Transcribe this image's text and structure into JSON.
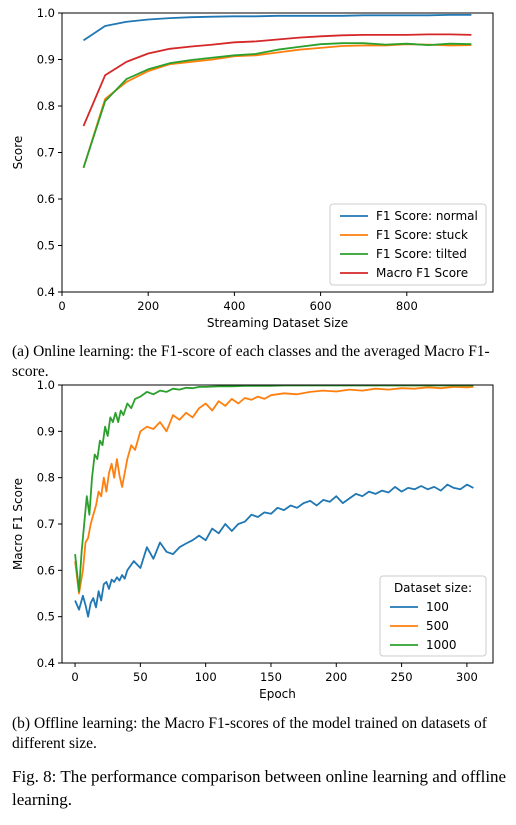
{
  "chart_data": [
    {
      "type": "line",
      "xlabel": "Streaming Dataset Size",
      "ylabel": "Score",
      "xlim": [
        0,
        1000
      ],
      "ylim": [
        0.4,
        1.0
      ],
      "xticks": [
        0,
        200,
        400,
        600,
        800
      ],
      "xtick_labels": [
        "0",
        "200",
        "400",
        "600",
        "800"
      ],
      "yticks": [
        0.4,
        0.5,
        0.6,
        0.7,
        0.8,
        0.9,
        1.0
      ],
      "ytick_labels": [
        "0.4",
        "0.5",
        "0.6",
        "0.7",
        "0.8",
        "0.9",
        "1.0"
      ],
      "grid": false,
      "legend_position": "lower-right",
      "series": [
        {
          "name": "F1 Score: normal",
          "color": "#1f77b4",
          "x": [
            50,
            100,
            150,
            200,
            250,
            300,
            350,
            400,
            450,
            500,
            550,
            600,
            650,
            700,
            750,
            800,
            850,
            900,
            950
          ],
          "y": [
            0.941,
            0.972,
            0.981,
            0.986,
            0.989,
            0.991,
            0.992,
            0.993,
            0.993,
            0.994,
            0.994,
            0.994,
            0.994,
            0.995,
            0.995,
            0.995,
            0.995,
            0.996,
            0.996
          ]
        },
        {
          "name": "F1 Score: stuck",
          "color": "#ff7f0e",
          "x": [
            50,
            100,
            150,
            200,
            250,
            300,
            350,
            400,
            450,
            500,
            550,
            600,
            650,
            700,
            750,
            800,
            850,
            900,
            950
          ],
          "y": [
            0.667,
            0.815,
            0.852,
            0.875,
            0.89,
            0.895,
            0.9,
            0.907,
            0.909,
            0.915,
            0.921,
            0.925,
            0.929,
            0.93,
            0.93,
            0.933,
            0.932,
            0.93,
            0.931
          ]
        },
        {
          "name": "F1 Score: tilted",
          "color": "#2ca02c",
          "x": [
            50,
            100,
            150,
            200,
            250,
            300,
            350,
            400,
            450,
            500,
            550,
            600,
            650,
            700,
            750,
            800,
            850,
            900,
            950
          ],
          "y": [
            0.667,
            0.81,
            0.858,
            0.879,
            0.892,
            0.899,
            0.904,
            0.909,
            0.912,
            0.921,
            0.927,
            0.933,
            0.935,
            0.935,
            0.932,
            0.934,
            0.931,
            0.934,
            0.933
          ]
        },
        {
          "name": "Macro F1 Score",
          "color": "#d62728",
          "x": [
            50,
            100,
            150,
            200,
            250,
            300,
            350,
            400,
            450,
            500,
            550,
            600,
            650,
            700,
            750,
            800,
            850,
            900,
            950
          ],
          "y": [
            0.757,
            0.866,
            0.895,
            0.913,
            0.923,
            0.928,
            0.932,
            0.937,
            0.939,
            0.943,
            0.947,
            0.95,
            0.952,
            0.953,
            0.953,
            0.953,
            0.954,
            0.954,
            0.953
          ]
        }
      ]
    },
    {
      "type": "line",
      "xlabel": "Epoch",
      "ylabel": "Macro F1 Score",
      "xlim": [
        -10,
        320
      ],
      "ylim": [
        0.4,
        1.0
      ],
      "xticks": [
        0,
        50,
        100,
        150,
        200,
        250,
        300
      ],
      "xtick_labels": [
        "0",
        "50",
        "100",
        "150",
        "200",
        "250",
        "300"
      ],
      "yticks": [
        0.4,
        0.5,
        0.6,
        0.7,
        0.8,
        0.9,
        1.0
      ],
      "ytick_labels": [
        "0.4",
        "0.5",
        "0.6",
        "0.7",
        "0.8",
        "0.9",
        "1.0"
      ],
      "grid": false,
      "legend_title": "Dataset size:",
      "legend_position": "lower-right",
      "series": [
        {
          "name": "100",
          "color": "#1f77b4",
          "x": [
            0,
            3,
            6,
            8,
            10,
            12,
            14,
            16,
            18,
            20,
            22,
            24,
            26,
            28,
            30,
            32,
            34,
            36,
            38,
            40,
            45,
            50,
            55,
            60,
            65,
            70,
            75,
            80,
            85,
            90,
            95,
            100,
            105,
            110,
            115,
            120,
            125,
            130,
            135,
            140,
            145,
            150,
            155,
            160,
            165,
            170,
            175,
            180,
            185,
            190,
            195,
            200,
            205,
            210,
            215,
            220,
            225,
            230,
            235,
            240,
            245,
            250,
            255,
            260,
            265,
            270,
            275,
            280,
            285,
            290,
            295,
            300,
            305
          ],
          "y": [
            0.535,
            0.515,
            0.545,
            0.525,
            0.5,
            0.53,
            0.54,
            0.52,
            0.555,
            0.535,
            0.57,
            0.575,
            0.56,
            0.58,
            0.575,
            0.585,
            0.578,
            0.59,
            0.582,
            0.6,
            0.62,
            0.605,
            0.65,
            0.625,
            0.66,
            0.64,
            0.635,
            0.65,
            0.658,
            0.665,
            0.675,
            0.665,
            0.69,
            0.68,
            0.7,
            0.685,
            0.7,
            0.705,
            0.72,
            0.715,
            0.725,
            0.722,
            0.735,
            0.73,
            0.74,
            0.735,
            0.745,
            0.75,
            0.74,
            0.752,
            0.748,
            0.76,
            0.745,
            0.755,
            0.765,
            0.76,
            0.77,
            0.765,
            0.772,
            0.768,
            0.78,
            0.77,
            0.778,
            0.775,
            0.782,
            0.775,
            0.78,
            0.772,
            0.785,
            0.778,
            0.775,
            0.785,
            0.778
          ]
        },
        {
          "name": "500",
          "color": "#ff7f0e",
          "x": [
            0,
            3,
            6,
            8,
            10,
            12,
            14,
            16,
            18,
            20,
            22,
            24,
            26,
            28,
            30,
            32,
            34,
            36,
            38,
            40,
            43,
            46,
            50,
            55,
            60,
            65,
            70,
            75,
            80,
            85,
            90,
            95,
            100,
            105,
            110,
            115,
            120,
            125,
            130,
            135,
            140,
            145,
            150,
            160,
            170,
            180,
            190,
            200,
            210,
            220,
            230,
            240,
            250,
            260,
            270,
            280,
            290,
            300,
            305
          ],
          "y": [
            0.62,
            0.55,
            0.6,
            0.66,
            0.67,
            0.7,
            0.72,
            0.74,
            0.77,
            0.76,
            0.8,
            0.77,
            0.81,
            0.83,
            0.8,
            0.84,
            0.805,
            0.78,
            0.81,
            0.84,
            0.87,
            0.86,
            0.9,
            0.91,
            0.905,
            0.92,
            0.9,
            0.935,
            0.925,
            0.94,
            0.93,
            0.95,
            0.96,
            0.945,
            0.965,
            0.955,
            0.97,
            0.96,
            0.972,
            0.968,
            0.975,
            0.97,
            0.978,
            0.982,
            0.98,
            0.985,
            0.988,
            0.986,
            0.99,
            0.988,
            0.992,
            0.99,
            0.993,
            0.992,
            0.995,
            0.993,
            0.996,
            0.995,
            0.996
          ]
        },
        {
          "name": "1000",
          "color": "#2ca02c",
          "x": [
            0,
            3,
            5,
            7,
            9,
            11,
            13,
            15,
            17,
            19,
            21,
            23,
            25,
            27,
            29,
            31,
            33,
            35,
            37,
            40,
            43,
            46,
            50,
            55,
            60,
            65,
            70,
            75,
            80,
            85,
            90,
            95,
            100,
            110,
            120,
            130,
            140,
            150,
            160,
            180,
            200,
            220,
            240,
            260,
            280,
            300,
            305
          ],
          "y": [
            0.635,
            0.555,
            0.64,
            0.7,
            0.76,
            0.72,
            0.8,
            0.85,
            0.84,
            0.88,
            0.87,
            0.91,
            0.89,
            0.93,
            0.92,
            0.94,
            0.92,
            0.945,
            0.935,
            0.96,
            0.95,
            0.97,
            0.975,
            0.985,
            0.98,
            0.988,
            0.985,
            0.992,
            0.99,
            0.994,
            0.993,
            0.996,
            0.996,
            0.997,
            0.997,
            0.998,
            0.998,
            0.998,
            0.999,
            0.999,
            0.999,
            0.999,
            0.999,
            0.999,
            0.999,
            0.999,
            0.999
          ]
        }
      ]
    }
  ],
  "captions": {
    "a": "(a) Online learning: the F1-score of each classes and the averaged Macro F1-score.",
    "b": "(b) Offline learning: the Macro F1-scores of the model trained on datasets of different size.",
    "figure": "Fig. 8: The performance comparison between online learning and offline learning."
  }
}
